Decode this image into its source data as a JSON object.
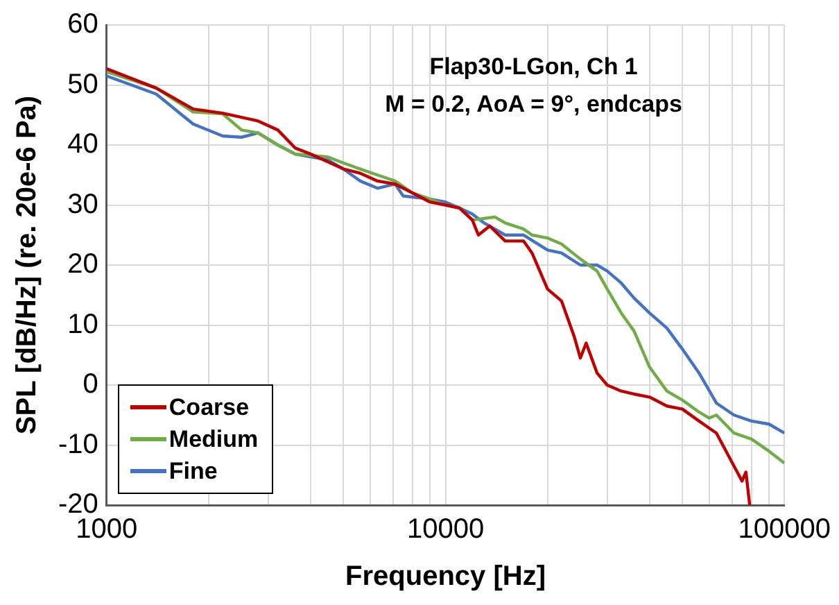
{
  "chart_data": {
    "type": "line",
    "xlabel": "Frequency [Hz]",
    "ylabel": "SPL [dB/Hz] (re. 20e-6 Pa)",
    "annotations": [
      "Flap30-LGon, Ch 1",
      "M = 0.2, AoA = 9°, endcaps"
    ],
    "log": "x",
    "xlim": [
      1000,
      100000
    ],
    "ylim": [
      -20,
      60
    ],
    "xticks": [
      1000,
      {
        "value": 2000,
        "label": null
      },
      {
        "value": 3000,
        "label": null
      },
      {
        "value": 4000,
        "label": null
      },
      {
        "value": 5000,
        "label": null
      },
      {
        "value": 6000,
        "label": null
      },
      {
        "value": 7000,
        "label": null
      },
      {
        "value": 8000,
        "label": null
      },
      {
        "value": 9000,
        "label": null
      },
      10000,
      {
        "value": 20000,
        "label": null
      },
      {
        "value": 30000,
        "label": null
      },
      {
        "value": 40000,
        "label": null
      },
      {
        "value": 50000,
        "label": null
      },
      {
        "value": 60000,
        "label": null
      },
      {
        "value": 70000,
        "label": null
      },
      {
        "value": 80000,
        "label": null
      },
      {
        "value": 90000,
        "label": null
      },
      100000
    ],
    "yticks": [
      -20,
      -10,
      0,
      10,
      20,
      30,
      40,
      50,
      60
    ],
    "grid": true,
    "legend": "bottom left",
    "series": [
      {
        "name": "Coarse",
        "color": "#c00000",
        "x": [
          1000,
          1400,
          1800,
          2200,
          2800,
          3200,
          3600,
          4000,
          5000,
          5600,
          6300,
          7100,
          8000,
          9000,
          10000,
          11000,
          12000,
          12500,
          13500,
          15000,
          17000,
          18000,
          20000,
          22000,
          24000,
          25000,
          26000,
          28000,
          30000,
          33000,
          36000,
          40000,
          45000,
          50000,
          56000,
          63000,
          71000,
          75000,
          77000,
          79000
        ],
        "values": [
          52.7,
          49.5,
          46,
          45.3,
          44,
          42.5,
          39.5,
          38.5,
          36,
          35.3,
          34,
          33.5,
          32,
          30.5,
          30,
          29.5,
          27.5,
          25,
          26.5,
          24,
          24,
          22,
          16,
          14,
          8,
          4.5,
          7,
          2,
          0,
          -1,
          -1.5,
          -2,
          -3.5,
          -4,
          -6,
          -8,
          -13.5,
          -16,
          -14.5,
          -20
        ]
      },
      {
        "name": "Medium",
        "color": "#70ad47",
        "x": [
          1000,
          1400,
          1800,
          2200,
          2500,
          2800,
          3200,
          3600,
          4500,
          5000,
          5600,
          6300,
          7100,
          8000,
          9000,
          10000,
          11000,
          12000,
          14000,
          15000,
          17000,
          18000,
          20000,
          22000,
          25000,
          28000,
          30000,
          33000,
          36000,
          40000,
          45000,
          50000,
          56000,
          60000,
          63000,
          71000,
          80000,
          90000,
          100000
        ],
        "values": [
          52.2,
          49.5,
          45.5,
          45.2,
          42.5,
          42,
          40,
          38.5,
          38,
          37,
          36,
          35,
          34,
          32,
          31,
          30,
          29.5,
          27.5,
          28,
          27,
          26,
          25,
          24.5,
          23.5,
          21,
          19,
          16,
          12,
          9,
          3,
          -1,
          -2.5,
          -4.5,
          -5.5,
          -5,
          -8,
          -9,
          -11,
          -13
        ]
      },
      {
        "name": "Fine",
        "color": "#4472c4",
        "x": [
          1000,
          1400,
          1800,
          2200,
          2500,
          2800,
          3200,
          3600,
          4500,
          5000,
          5600,
          6300,
          7100,
          7500,
          9000,
          10000,
          11000,
          12000,
          13000,
          15000,
          17000,
          20000,
          22000,
          25000,
          28000,
          30000,
          33000,
          36000,
          40000,
          45000,
          50000,
          56000,
          63000,
          71000,
          80000,
          90000,
          100000
        ],
        "values": [
          51.5,
          48.5,
          43.5,
          41.5,
          41.3,
          42,
          40,
          38.5,
          37.5,
          36,
          34,
          32.8,
          33.5,
          31.5,
          31,
          30.5,
          29.5,
          28.5,
          27,
          25,
          25,
          22.5,
          22,
          20,
          20,
          19,
          17,
          14.5,
          12,
          9.5,
          6,
          2,
          -3,
          -5,
          -6,
          -6.5,
          -8
        ]
      }
    ]
  }
}
